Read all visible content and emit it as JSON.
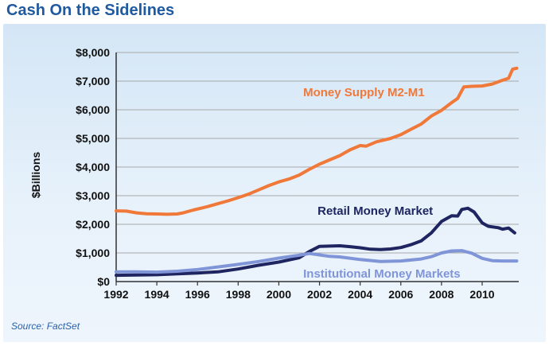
{
  "header": {
    "title": "Cash On the Sidelines"
  },
  "footer": {
    "source": "Source: FactSet"
  },
  "colors": {
    "m2": "#f07838",
    "retail": "#1e2560",
    "institutional": "#7f95d8",
    "title": "#1f5aa0",
    "grid": "#a8a8a8"
  },
  "chart_data": {
    "type": "line",
    "title": "Cash On the Sidelines",
    "xlabel": "",
    "ylabel": "$Billions",
    "xlim": [
      1992,
      2011.8
    ],
    "ylim": [
      0,
      8000
    ],
    "grid": true,
    "legend": "inline labels",
    "x_ticks": [
      1992,
      1994,
      1996,
      1998,
      2000,
      2002,
      2004,
      2006,
      2008,
      2010
    ],
    "x_tick_labels": [
      "1992",
      "1994",
      "1996",
      "1998",
      "2000",
      "2002",
      "2004",
      "2006",
      "2008",
      "2010"
    ],
    "y_ticks": [
      0,
      1000,
      2000,
      3000,
      4000,
      5000,
      6000,
      7000,
      8000
    ],
    "y_tick_labels": [
      "$0",
      "$1,000",
      "$2,000",
      "$3,000",
      "$4,000",
      "$5,000",
      "$6,000",
      "$7,000",
      "$8,000"
    ],
    "series": [
      {
        "name": "Money Supply M2-M1",
        "color": "#f07838",
        "points": [
          [
            1992,
            2470
          ],
          [
            1992.5,
            2460
          ],
          [
            1993,
            2400
          ],
          [
            1993.5,
            2370
          ],
          [
            1994,
            2360
          ],
          [
            1994.5,
            2350
          ],
          [
            1995,
            2360
          ],
          [
            1995.3,
            2400
          ],
          [
            1995.8,
            2500
          ],
          [
            1996.5,
            2620
          ],
          [
            1997,
            2720
          ],
          [
            1997.5,
            2820
          ],
          [
            1998,
            2930
          ],
          [
            1998.5,
            3050
          ],
          [
            1999,
            3200
          ],
          [
            1999.5,
            3350
          ],
          [
            2000,
            3480
          ],
          [
            2000.5,
            3580
          ],
          [
            2001,
            3720
          ],
          [
            2001.5,
            3920
          ],
          [
            2002,
            4100
          ],
          [
            2002.5,
            4250
          ],
          [
            2003,
            4400
          ],
          [
            2003.5,
            4600
          ],
          [
            2004,
            4750
          ],
          [
            2004.3,
            4730
          ],
          [
            2004.8,
            4880
          ],
          [
            2005.5,
            5000
          ],
          [
            2006,
            5130
          ],
          [
            2006.5,
            5320
          ],
          [
            2007,
            5500
          ],
          [
            2007.5,
            5780
          ],
          [
            2008,
            5980
          ],
          [
            2008.5,
            6250
          ],
          [
            2008.8,
            6400
          ],
          [
            2009.1,
            6800
          ],
          [
            2009.5,
            6820
          ],
          [
            2010,
            6830
          ],
          [
            2010.5,
            6900
          ],
          [
            2011,
            7030
          ],
          [
            2011.3,
            7100
          ],
          [
            2011.5,
            7420
          ],
          [
            2011.7,
            7450
          ]
        ]
      },
      {
        "name": "Retail Money Market",
        "color": "#1e2560",
        "points": [
          [
            1992,
            220
          ],
          [
            1993,
            230
          ],
          [
            1994,
            240
          ],
          [
            1995,
            270
          ],
          [
            1996,
            300
          ],
          [
            1997,
            340
          ],
          [
            1998,
            440
          ],
          [
            1999,
            570
          ],
          [
            2000,
            680
          ],
          [
            2001,
            830
          ],
          [
            2001.5,
            1050
          ],
          [
            2002,
            1230
          ],
          [
            2002.5,
            1240
          ],
          [
            2003,
            1250
          ],
          [
            2003.5,
            1220
          ],
          [
            2004,
            1180
          ],
          [
            2004.5,
            1130
          ],
          [
            2005,
            1120
          ],
          [
            2005.5,
            1140
          ],
          [
            2006,
            1190
          ],
          [
            2006.5,
            1290
          ],
          [
            2007,
            1420
          ],
          [
            2007.5,
            1700
          ],
          [
            2008,
            2100
          ],
          [
            2008.5,
            2300
          ],
          [
            2008.8,
            2290
          ],
          [
            2009,
            2520
          ],
          [
            2009.3,
            2560
          ],
          [
            2009.6,
            2430
          ],
          [
            2010,
            2050
          ],
          [
            2010.3,
            1930
          ],
          [
            2010.8,
            1880
          ],
          [
            2011,
            1830
          ],
          [
            2011.3,
            1870
          ],
          [
            2011.6,
            1700
          ]
        ]
      },
      {
        "name": "Institutional Money Markets",
        "color": "#7f95d8",
        "points": [
          [
            1992,
            340
          ],
          [
            1993,
            340
          ],
          [
            1994,
            330
          ],
          [
            1995,
            360
          ],
          [
            1996,
            420
          ],
          [
            1997,
            510
          ],
          [
            1998,
            600
          ],
          [
            1999,
            700
          ],
          [
            2000,
            820
          ],
          [
            2001,
            920
          ],
          [
            2001.5,
            980
          ],
          [
            2002,
            930
          ],
          [
            2002.5,
            880
          ],
          [
            2003,
            860
          ],
          [
            2004,
            770
          ],
          [
            2005,
            700
          ],
          [
            2006,
            720
          ],
          [
            2007,
            790
          ],
          [
            2007.5,
            870
          ],
          [
            2008,
            1000
          ],
          [
            2008.5,
            1070
          ],
          [
            2009,
            1080
          ],
          [
            2009.5,
            990
          ],
          [
            2010,
            810
          ],
          [
            2010.5,
            730
          ],
          [
            2011,
            720
          ],
          [
            2011.7,
            720
          ]
        ]
      }
    ],
    "annotations": [
      {
        "series": "Money Supply M2-M1",
        "text": "Money Supply M2-M1",
        "x": 2001.2,
        "y": 6470
      },
      {
        "series": "Retail Money Market",
        "text": "Retail Money Market",
        "x": 2001.2,
        "y": 2330
      },
      {
        "series": "Institutional Money Markets",
        "text": "Institutional Money Markets",
        "x": 2001.2,
        "y": 140
      }
    ]
  }
}
